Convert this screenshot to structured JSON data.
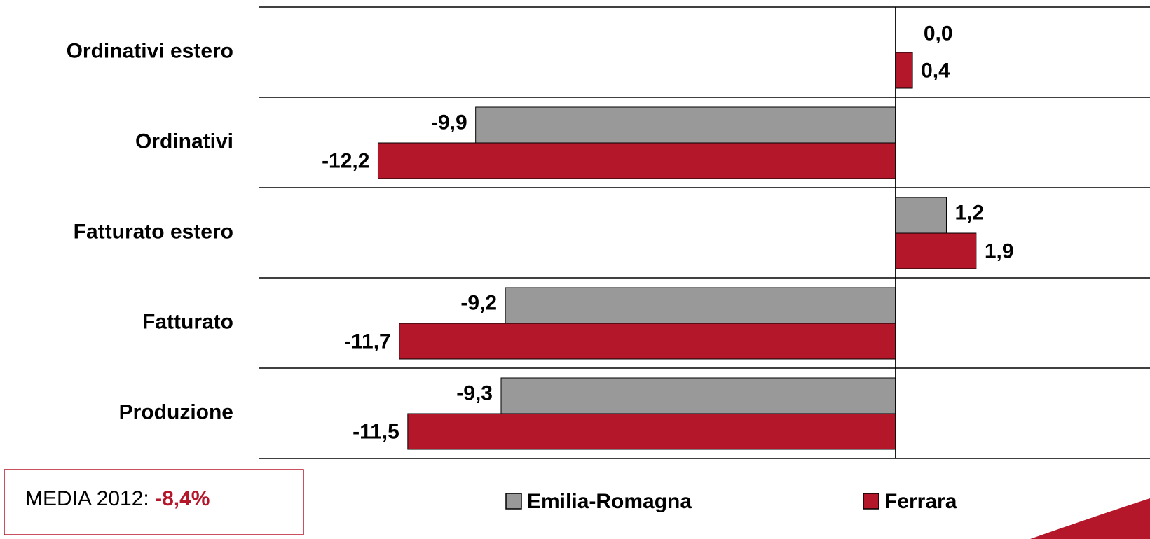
{
  "chart_data": {
    "type": "bar",
    "orientation": "horizontal",
    "categories": [
      "Ordinativi estero",
      "Ordinativi",
      "Fatturato estero",
      "Fatturato",
      "Produzione"
    ],
    "series": [
      {
        "name": "Emilia-Romagna",
        "color": "#999999",
        "values": [
          0.0,
          -9.9,
          1.2,
          -9.2,
          -9.3
        ],
        "value_labels": [
          "0,0",
          "-9,9",
          "1,2",
          "-9,2",
          "-9,3"
        ]
      },
      {
        "name": "Ferrara",
        "color": "#b5172a",
        "values": [
          0.4,
          -12.2,
          1.9,
          -11.7,
          -11.5
        ],
        "value_labels": [
          "0,4",
          "-12,2",
          "1,9",
          "-11,7",
          "-11,5"
        ]
      }
    ],
    "xlim": [
      -15,
      6
    ],
    "legend": "bottom",
    "annotation": {
      "text": "MEDIA  2012:",
      "value": "-8,4%"
    }
  }
}
